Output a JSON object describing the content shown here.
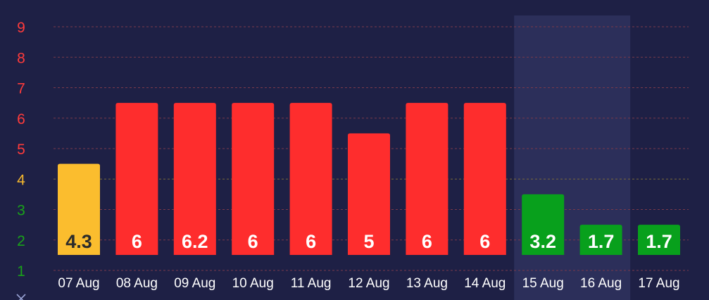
{
  "chart_data": {
    "type": "bar",
    "title": "",
    "xlabel": "",
    "ylabel": "",
    "ylim": [
      1,
      9.6
    ],
    "grid": true,
    "y_ticks": [
      {
        "label": "9",
        "value": 9,
        "color": "#ff3b3b"
      },
      {
        "label": "8",
        "value": 8,
        "color": "#ff3b3b"
      },
      {
        "label": "7",
        "value": 7,
        "color": "#ff3b3b"
      },
      {
        "label": "6",
        "value": 6,
        "color": "#ff3b3b"
      },
      {
        "label": "5",
        "value": 5,
        "color": "#ff3b3b"
      },
      {
        "label": "4",
        "value": 4,
        "color": "#f5b82e"
      },
      {
        "label": "3",
        "value": 3,
        "color": "#19a319"
      },
      {
        "label": "2",
        "value": 2,
        "color": "#19a319"
      },
      {
        "label": "1",
        "value": 1,
        "color": "#19a319"
      }
    ],
    "categories": [
      "07 Aug",
      "08 Aug",
      "09 Aug",
      "10 Aug",
      "11 Aug",
      "12 Aug",
      "13 Aug",
      "14 Aug",
      "15 Aug",
      "16 Aug",
      "17 Aug"
    ],
    "values": [
      4.3,
      6,
      6.2,
      6,
      6,
      5,
      6,
      6,
      3.2,
      1.7,
      1.7
    ],
    "bar_tops": [
      4.5,
      6.5,
      6.5,
      6.5,
      6.5,
      5.5,
      6.5,
      6.5,
      3.5,
      2.5,
      2.5
    ],
    "labels": [
      "4.3",
      "6",
      "6.2",
      "6",
      "6",
      "5",
      "6",
      "6",
      "3.2",
      "1.7",
      "1.7"
    ],
    "bar_colors": [
      "#fbbd2e",
      "#fe2d2d",
      "#fe2d2d",
      "#fe2d2d",
      "#fe2d2d",
      "#fe2d2d",
      "#fe2d2d",
      "#fe2d2d",
      "#08a01c",
      "#08a01c",
      "#08a01c"
    ],
    "label_colors": [
      "#2b2b2b",
      "#ffffff",
      "#ffffff",
      "#ffffff",
      "#ffffff",
      "#ffffff",
      "#ffffff",
      "#ffffff",
      "#ffffff",
      "#ffffff",
      "#ffffff"
    ],
    "highlight_category": "15 Aug",
    "colors": {
      "background": "#1e2045",
      "highlight_band": "#2c2f5a",
      "grid": "#7a3a4a",
      "grid_warning": "#7a6a3a",
      "axis_label": "#ffffff",
      "corner_icon": "#9aa4d6"
    },
    "corner_icon": "close-icon"
  }
}
